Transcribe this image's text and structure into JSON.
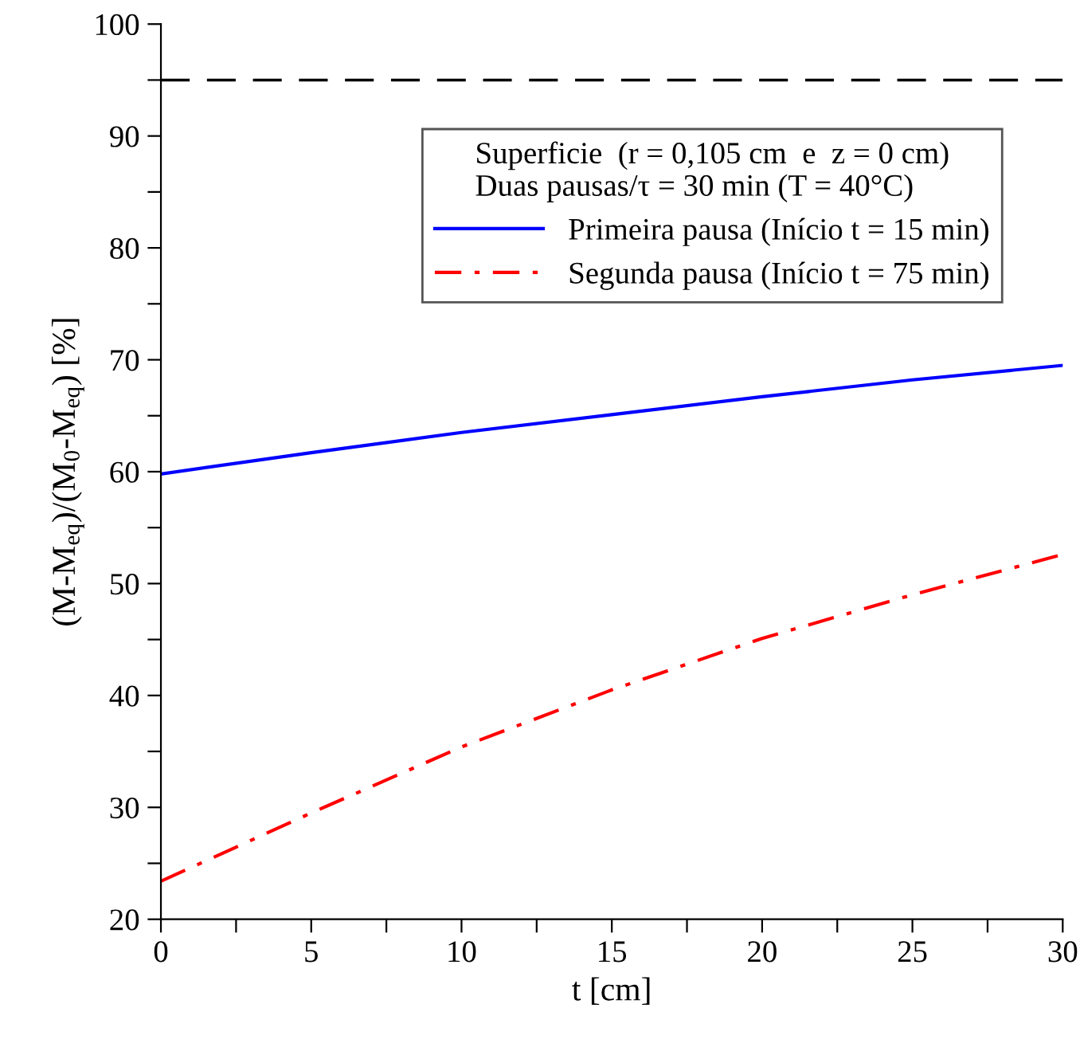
{
  "chart_data": {
    "type": "line",
    "xlabel": "t [cm]",
    "ylabel": "(M-M$_{eq}$)/(M$_{0}$-M$_{eq}$) [%]",
    "legend_title": "Superficie  (r = 0,105 cm  e  z = 0 cm)\nDuas pausas/τ = 30 min (T = 40°C)",
    "x": [
      0,
      5,
      10,
      15,
      20,
      25,
      30
    ],
    "series": [
      {
        "name": "Primeira pausa (Início t = 15 min)",
        "color": "#0000ff",
        "line_style": "solid",
        "values": [
          59.8,
          61.7,
          63.5,
          65.1,
          66.7,
          68.2,
          69.5
        ]
      },
      {
        "name": "Segunda pausa (Início t = 75 min)",
        "color": "#ff0000",
        "line_style": "dashdot",
        "values": [
          23.4,
          29.5,
          35.4,
          40.5,
          45.1,
          49.0,
          52.6
        ]
      }
    ],
    "ref_lines": [
      {
        "axis": "y",
        "value": 95,
        "color": "#000000",
        "line_style": "dashed"
      }
    ],
    "xlim": [
      0,
      30
    ],
    "ylim": [
      20,
      100
    ],
    "xticks": [
      0,
      {
        "value": 2.5,
        "label": null
      },
      5,
      {
        "value": 7.5,
        "label": null
      },
      10,
      {
        "value": 12.5,
        "label": null
      },
      15,
      {
        "value": 17.5,
        "label": null
      },
      20,
      {
        "value": 22.5,
        "label": null
      },
      25,
      {
        "value": 27.5,
        "label": null
      },
      30
    ],
    "yticks": [
      20,
      {
        "value": 25,
        "label": null
      },
      30,
      {
        "value": 35,
        "label": null
      },
      40,
      {
        "value": 45,
        "label": null
      },
      50,
      {
        "value": 55,
        "label": null
      },
      60,
      {
        "value": 65,
        "label": null
      },
      70,
      {
        "value": 75,
        "label": null
      },
      80,
      {
        "value": 85,
        "label": null
      },
      90,
      {
        "value": 95,
        "label": null
      },
      100
    ],
    "grid": false,
    "legend": "top right",
    "marker": "none"
  }
}
